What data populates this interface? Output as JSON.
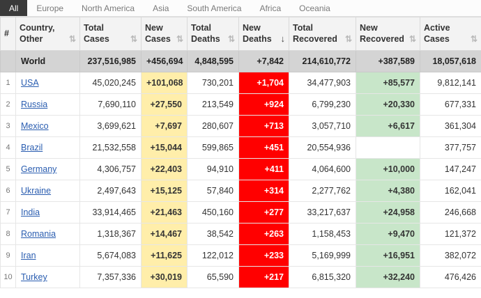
{
  "tabs": {
    "items": [
      "All",
      "Europe",
      "North America",
      "Asia",
      "South America",
      "Africa",
      "Oceania"
    ],
    "active": "All"
  },
  "icons": {
    "sort": "⇅",
    "sort_desc": "↓"
  },
  "colors": {
    "new_cases_bg": "#ffeeaa",
    "new_deaths_bg": "#ff0000",
    "new_recovered_bg": "#c8e6c9",
    "world_row_bg": "#d4d4d4",
    "header_bg": "#f3f3f3",
    "active_tab_bg": "#3a3a3a",
    "link_color": "#2a5db0"
  },
  "table": {
    "columns": [
      {
        "key": "rank",
        "label": "#",
        "sortable": false,
        "sorted": "none"
      },
      {
        "key": "country",
        "label": "Country, Other",
        "sortable": true,
        "sorted": "none"
      },
      {
        "key": "total_cases",
        "label": "Total Cases",
        "sortable": true,
        "sorted": "none"
      },
      {
        "key": "new_cases",
        "label": "New Cases",
        "sortable": true,
        "sorted": "none"
      },
      {
        "key": "total_deaths",
        "label": "Total Deaths",
        "sortable": true,
        "sorted": "none"
      },
      {
        "key": "new_deaths",
        "label": "New Deaths",
        "sortable": true,
        "sorted": "desc"
      },
      {
        "key": "total_recovered",
        "label": "Total Recovered",
        "sortable": true,
        "sorted": "none"
      },
      {
        "key": "new_recovered",
        "label": "New Recovered",
        "sortable": true,
        "sorted": "none"
      },
      {
        "key": "active_cases",
        "label": "Active Cases",
        "sortable": true,
        "sorted": "none"
      }
    ],
    "world_row": {
      "rank": "",
      "country": "World",
      "total_cases": "237,516,985",
      "new_cases": "+456,694",
      "total_deaths": "4,848,595",
      "new_deaths": "+7,842",
      "total_recovered": "214,610,772",
      "new_recovered": "+387,589",
      "active_cases": "18,057,618"
    },
    "rows": [
      {
        "rank": "1",
        "country": "USA",
        "total_cases": "45,020,245",
        "new_cases": "+101,068",
        "total_deaths": "730,201",
        "new_deaths": "+1,704",
        "total_recovered": "34,477,903",
        "new_recovered": "+85,577",
        "active_cases": "9,812,141"
      },
      {
        "rank": "2",
        "country": "Russia",
        "total_cases": "7,690,110",
        "new_cases": "+27,550",
        "total_deaths": "213,549",
        "new_deaths": "+924",
        "total_recovered": "6,799,230",
        "new_recovered": "+20,330",
        "active_cases": "677,331"
      },
      {
        "rank": "3",
        "country": "Mexico",
        "total_cases": "3,699,621",
        "new_cases": "+7,697",
        "total_deaths": "280,607",
        "new_deaths": "+713",
        "total_recovered": "3,057,710",
        "new_recovered": "+6,617",
        "active_cases": "361,304"
      },
      {
        "rank": "4",
        "country": "Brazil",
        "total_cases": "21,532,558",
        "new_cases": "+15,044",
        "total_deaths": "599,865",
        "new_deaths": "+451",
        "total_recovered": "20,554,936",
        "new_recovered": "",
        "active_cases": "377,757"
      },
      {
        "rank": "5",
        "country": "Germany",
        "total_cases": "4,306,757",
        "new_cases": "+22,403",
        "total_deaths": "94,910",
        "new_deaths": "+411",
        "total_recovered": "4,064,600",
        "new_recovered": "+10,000",
        "active_cases": "147,247"
      },
      {
        "rank": "6",
        "country": "Ukraine",
        "total_cases": "2,497,643",
        "new_cases": "+15,125",
        "total_deaths": "57,840",
        "new_deaths": "+314",
        "total_recovered": "2,277,762",
        "new_recovered": "+4,380",
        "active_cases": "162,041"
      },
      {
        "rank": "7",
        "country": "India",
        "total_cases": "33,914,465",
        "new_cases": "+21,463",
        "total_deaths": "450,160",
        "new_deaths": "+277",
        "total_recovered": "33,217,637",
        "new_recovered": "+24,958",
        "active_cases": "246,668"
      },
      {
        "rank": "8",
        "country": "Romania",
        "total_cases": "1,318,367",
        "new_cases": "+14,467",
        "total_deaths": "38,542",
        "new_deaths": "+263",
        "total_recovered": "1,158,453",
        "new_recovered": "+9,470",
        "active_cases": "121,372"
      },
      {
        "rank": "9",
        "country": "Iran",
        "total_cases": "5,674,083",
        "new_cases": "+11,625",
        "total_deaths": "122,012",
        "new_deaths": "+233",
        "total_recovered": "5,169,999",
        "new_recovered": "+16,951",
        "active_cases": "382,072"
      },
      {
        "rank": "10",
        "country": "Turkey",
        "total_cases": "7,357,336",
        "new_cases": "+30,019",
        "total_deaths": "65,590",
        "new_deaths": "+217",
        "total_recovered": "6,815,320",
        "new_recovered": "+32,240",
        "active_cases": "476,426"
      }
    ]
  }
}
